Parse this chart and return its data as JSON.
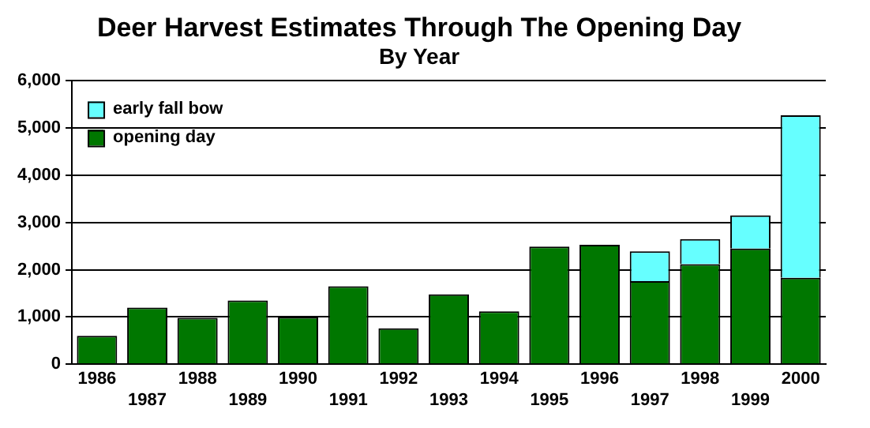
{
  "chart_data": {
    "type": "bar",
    "title": "Deer Harvest Estimates Through The Opening Day",
    "subtitle": "By Year",
    "categories": [
      "1986",
      "1987",
      "1988",
      "1989",
      "1990",
      "1991",
      "1992",
      "1993",
      "1994",
      "1995",
      "1996",
      "1997",
      "1998",
      "1999",
      "2000"
    ],
    "series": [
      {
        "name": "opening day",
        "color": "#007700",
        "values": [
          600,
          1200,
          980,
          1350,
          1000,
          1650,
          760,
          1480,
          1120,
          2490,
          2530,
          1760,
          2120,
          2450,
          1830
        ]
      },
      {
        "name": "early fall bow",
        "color": "#66ffff",
        "values": [
          null,
          null,
          null,
          null,
          null,
          null,
          null,
          null,
          null,
          null,
          null,
          630,
          530,
          700,
          3440
        ]
      }
    ],
    "stacked": true,
    "ylim": [
      0,
      6000
    ],
    "yticks": [
      {
        "value": 0,
        "label": "0"
      },
      {
        "value": 1000,
        "label": "1,000"
      },
      {
        "value": 2000,
        "label": "2,000"
      },
      {
        "value": 3000,
        "label": "3,000"
      },
      {
        "value": 4000,
        "label": "4,000"
      },
      {
        "value": 5000,
        "label": "5,000"
      },
      {
        "value": 6000,
        "label": "6,000"
      }
    ],
    "grid": "y",
    "legend": "top left"
  }
}
